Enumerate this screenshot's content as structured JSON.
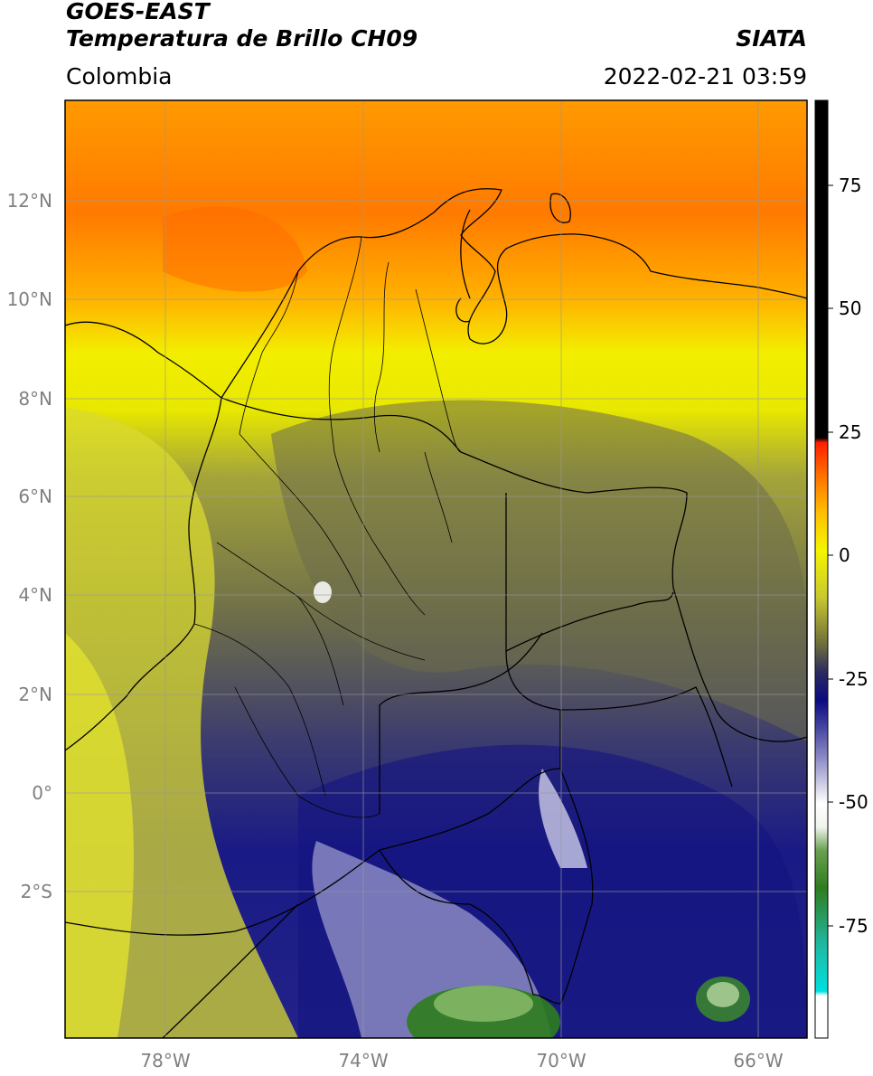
{
  "header": {
    "satellite": "GOES-EAST",
    "product": "Temperatura de Brillo CH09",
    "org": "SIATA",
    "region": "Colombia",
    "datetime": "2022-02-21 03:59"
  },
  "map": {
    "lon_range": [
      -80.0,
      -65.0
    ],
    "lat_range": [
      -5.0,
      14.0
    ],
    "lon_ticks": [
      "78°W",
      "74°W",
      "70°W",
      "66°W"
    ],
    "lat_ticks": [
      "12°N",
      "10°N",
      "8°N",
      "6°N",
      "4°N",
      "2°N",
      "0°",
      "2°S"
    ],
    "gridlines": true
  },
  "colorbar": {
    "range": [
      -100,
      90
    ],
    "tick_labels": [
      "75",
      "50",
      "25",
      "0",
      "-25",
      "-50",
      "-75"
    ],
    "colors": {
      "white": "#ffffff",
      "cyan": "#00d2d2",
      "green": "#2e7d1e",
      "pale": "#e6eee0",
      "navy": "#0a0a80",
      "olive": "#6e6e3c",
      "yellow": "#f0f000",
      "orange": "#ff8c00",
      "red": "#ff1e00",
      "black": "#000000"
    }
  }
}
